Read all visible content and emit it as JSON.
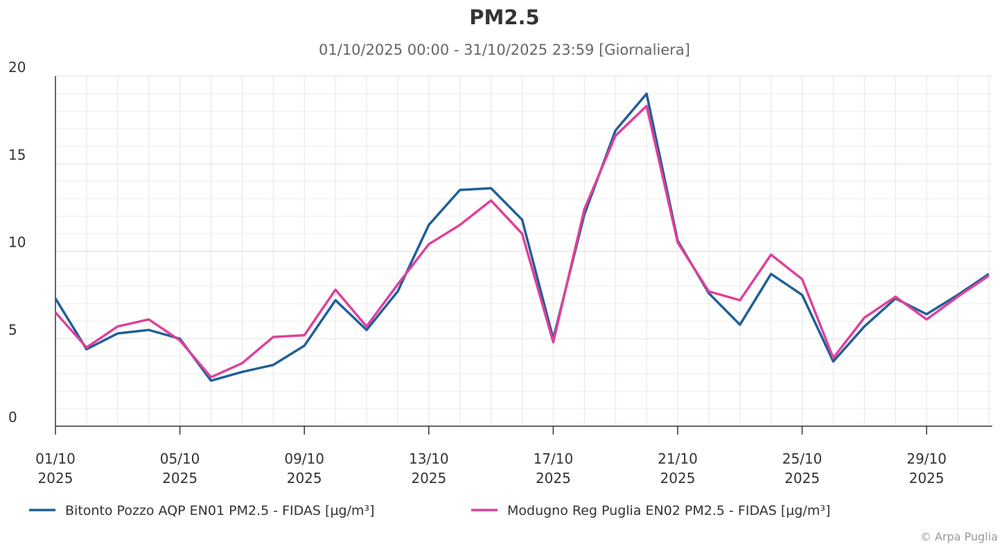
{
  "chart_data": {
    "type": "line",
    "title": "PM2.5",
    "subtitle": "01/10/2025 00:00 - 31/10/2025 23:59 [Giornaliera]",
    "credit": "© Arpa Puglia",
    "categories": [
      "01/10\n2025",
      null,
      null,
      null,
      "05/10\n2025",
      null,
      null,
      null,
      "09/10\n2025",
      null,
      null,
      null,
      "13/10\n2025",
      null,
      null,
      null,
      "17/10\n2025",
      null,
      null,
      null,
      "21/10\n2025",
      null,
      null,
      null,
      "25/10\n2025",
      null,
      null,
      null,
      "29/10\n2025",
      null,
      null
    ],
    "series": [
      {
        "name": "Bitonto Pozzo AQP EN01 PM2.5 - FIDAS [µg/m³]",
        "color": "#1f5f99",
        "values": [
          7.3,
          4.4,
          5.3,
          5.5,
          5.0,
          2.6,
          3.1,
          3.5,
          4.6,
          7.2,
          5.5,
          7.7,
          11.5,
          13.5,
          13.6,
          11.8,
          5.0,
          12.1,
          16.9,
          19.0,
          10.6,
          7.6,
          5.8,
          8.7,
          7.5,
          3.7,
          5.7,
          7.3,
          6.4,
          7.5,
          8.7
        ]
      },
      {
        "name": "Modugno Reg Puglia EN02 PM2.5 - FIDAS [µg/m³]",
        "color": "#e0409a",
        "values": [
          6.5,
          4.5,
          5.7,
          6.1,
          4.9,
          2.8,
          3.6,
          5.1,
          5.2,
          7.8,
          5.7,
          8.1,
          10.4,
          11.5,
          12.9,
          11.0,
          4.8,
          12.4,
          16.6,
          18.3,
          10.5,
          7.7,
          7.2,
          9.8,
          8.4,
          3.9,
          6.2,
          7.4,
          6.1,
          7.4,
          8.6
        ]
      }
    ],
    "ylim": [
      0,
      20
    ],
    "yticks": [
      0,
      5,
      10,
      15,
      20
    ],
    "yminorticks": [
      1,
      2,
      3,
      4,
      6,
      7,
      8,
      9,
      11,
      12,
      13,
      14,
      16,
      17,
      18,
      19
    ],
    "grid": true
  }
}
